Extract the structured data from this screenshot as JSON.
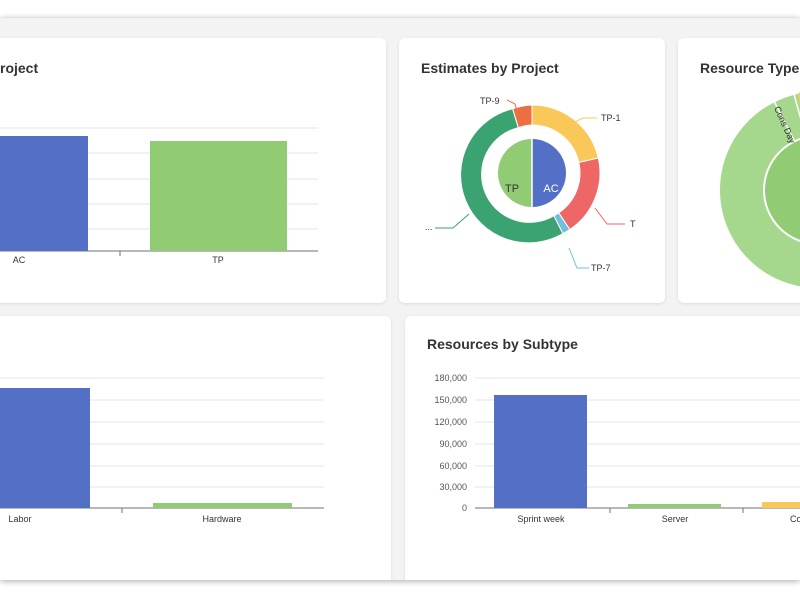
{
  "cards": {
    "c1": {
      "title": "roject"
    },
    "c2": {
      "title": "Estimates by Project",
      "inner": [
        "AC",
        "TP"
      ],
      "outer_labels": [
        "TP-9",
        "TP-1",
        "T",
        "TP-7",
        "..."
      ]
    },
    "c3": {
      "title": "Resource Types",
      "label": "Cons Day"
    },
    "c4": {
      "title": ""
    },
    "c5": {
      "title": "Resources by Subtype"
    }
  },
  "charts": {
    "c1": {
      "categories": [
        "AC",
        "TP"
      ]
    },
    "c4": {
      "categories": [
        "Labor",
        "Hardware"
      ]
    },
    "c5": {
      "categories": [
        "Sprint week",
        "Server",
        "Co"
      ],
      "yticks": [
        "0",
        "30,000",
        "60,000",
        "90,000",
        "120,000",
        "150,000",
        "180,000"
      ]
    }
  },
  "chart_data": [
    {
      "type": "bar",
      "categories": [
        "AC",
        "TP"
      ],
      "values": [
        0.88,
        0.84
      ],
      "colors": [
        "#5470c6",
        "#91cc75"
      ]
    },
    {
      "type": "pie",
      "inner": {
        "labels": [
          "AC",
          "TP"
        ],
        "values": [
          50,
          50
        ],
        "colors": [
          "#5470c6",
          "#91cc75"
        ]
      },
      "outer": {
        "labels": [
          "TP-9",
          "TP-1",
          "T",
          "TP-7",
          "..."
        ],
        "values": [
          6,
          17,
          14,
          2,
          61
        ],
        "colors": [
          "#ee6e43",
          "#fac858",
          "#ee6666",
          "#73c0de",
          "#3ba272"
        ]
      }
    },
    {
      "type": "pie",
      "labels": [
        "Cons Day"
      ],
      "colors": [
        "#91cc75",
        "#a5d78c",
        "#fac858"
      ]
    },
    {
      "type": "bar",
      "categories": [
        "Labor",
        "Hardware"
      ],
      "values": [
        0.92,
        0.04
      ],
      "colors": [
        "#5470c6",
        "#91cc75"
      ]
    },
    {
      "type": "bar",
      "categories": [
        "Sprint week",
        "Server",
        "Co"
      ],
      "values": [
        156000,
        6000,
        9000
      ],
      "ylim": [
        0,
        180000
      ],
      "colors": [
        "#5470c6",
        "#91cc75",
        "#fac858"
      ]
    }
  ]
}
